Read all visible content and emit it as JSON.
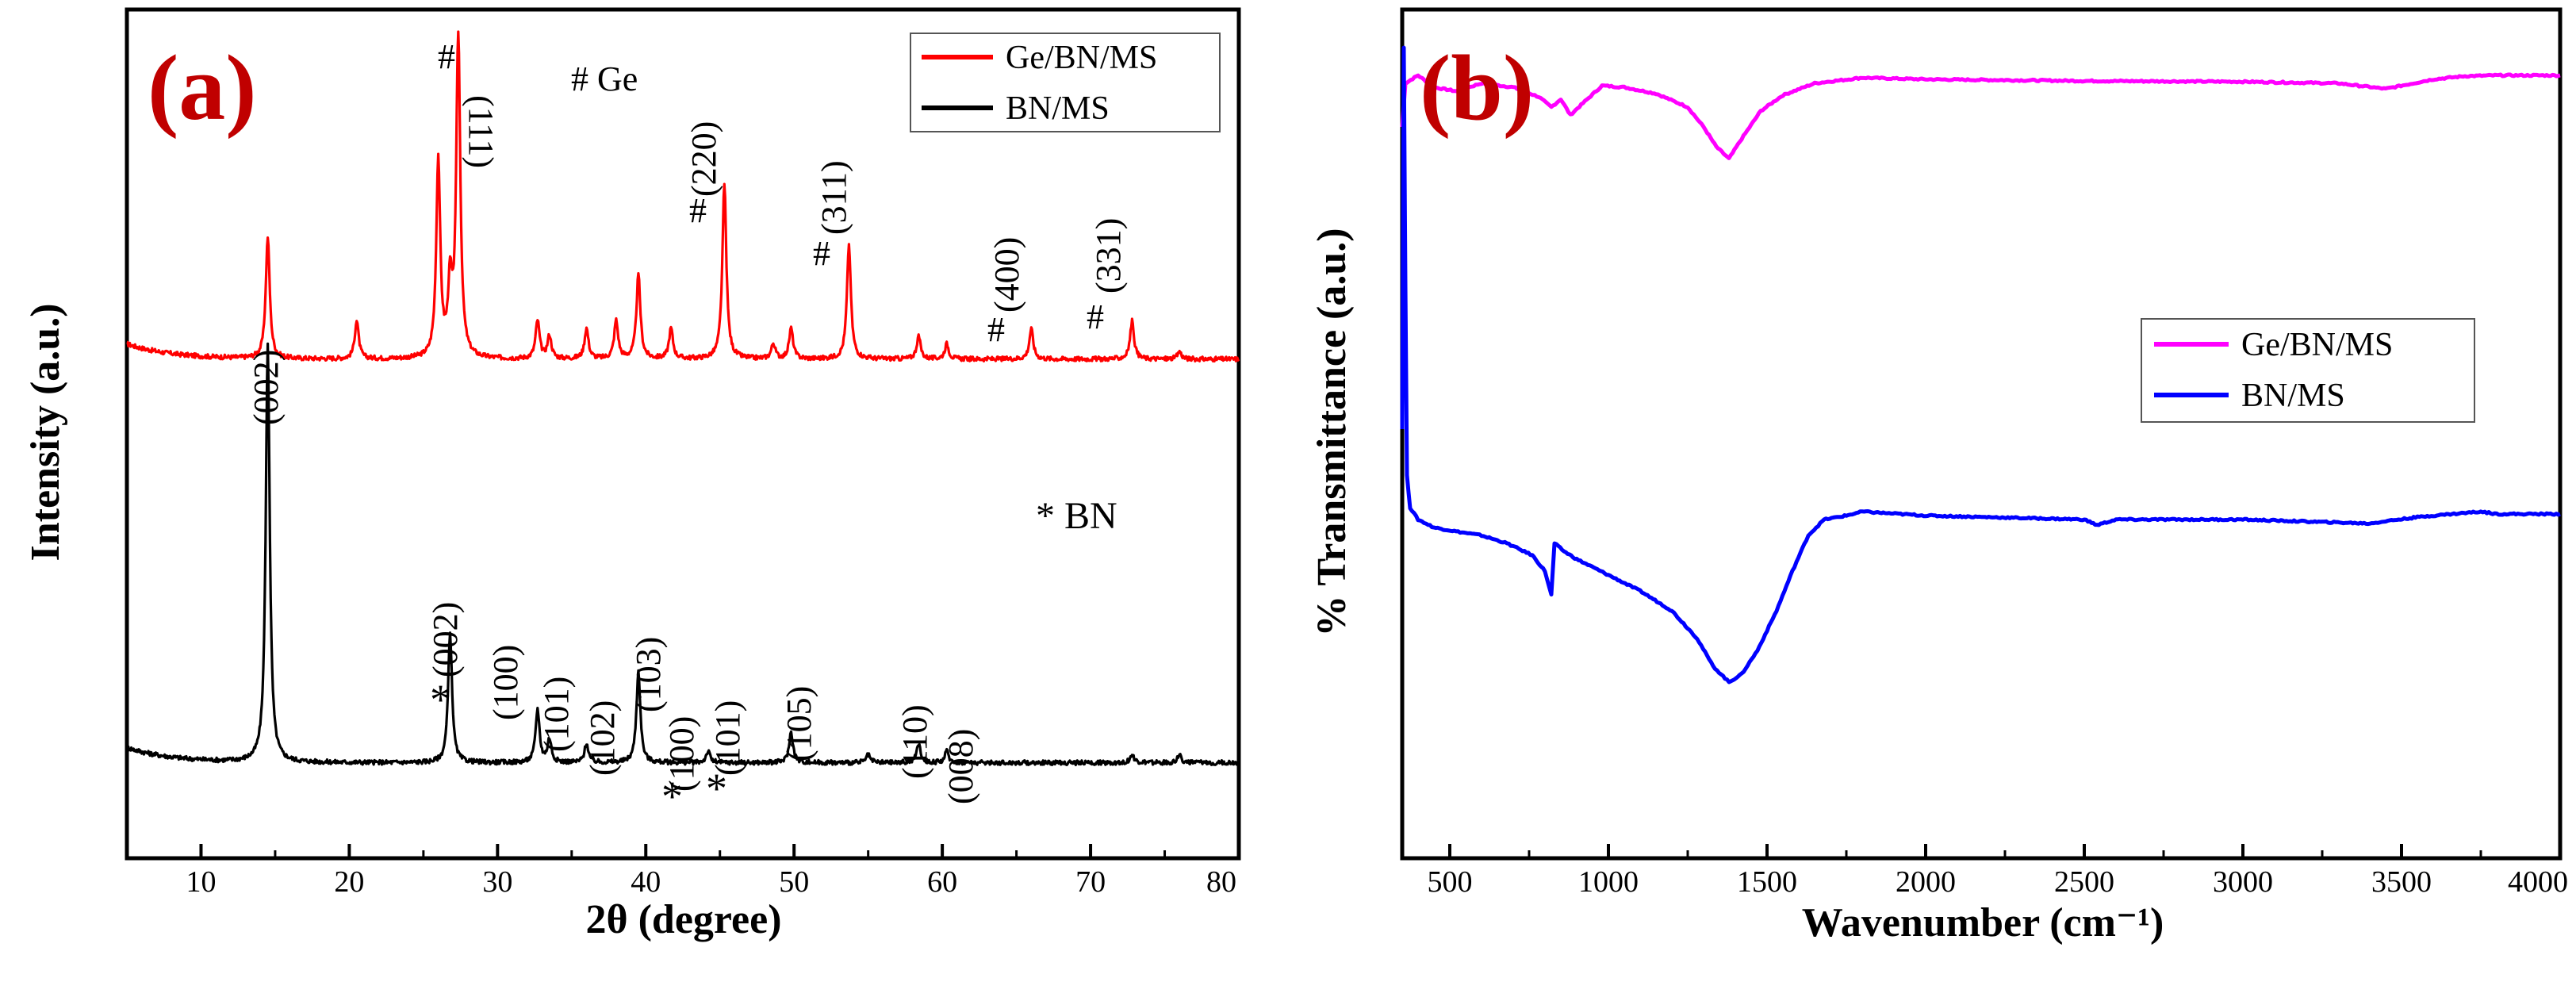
{
  "chart_data": [
    {
      "panel": "(a)",
      "type": "line",
      "xlabel": "2θ (degree)",
      "ylabel": "Intensity (a.u.)",
      "xlim": [
        5,
        80
      ],
      "xticks": [
        10,
        20,
        30,
        40,
        50,
        60,
        70,
        80
      ],
      "ylim": [
        0,
        1.0
      ],
      "legend_position": "top-right",
      "series": [
        {
          "name": "Ge/BN/MS",
          "color": "#ff0000",
          "baseline": 0.57,
          "peaks": [
            {
              "x": 14.5,
              "h": 0.16
            },
            {
              "x": 20.5,
              "h": 0.05
            },
            {
              "x": 26.0,
              "h": 0.26
            },
            {
              "x": 26.8,
              "h": 0.09
            },
            {
              "x": 27.35,
              "h": 0.43
            },
            {
              "x": 32.7,
              "h": 0.05
            },
            {
              "x": 33.5,
              "h": 0.03
            },
            {
              "x": 36.0,
              "h": 0.04
            },
            {
              "x": 38.0,
              "h": 0.05
            },
            {
              "x": 39.5,
              "h": 0.11
            },
            {
              "x": 41.7,
              "h": 0.04
            },
            {
              "x": 45.3,
              "h": 0.23
            },
            {
              "x": 48.6,
              "h": 0.02
            },
            {
              "x": 49.8,
              "h": 0.04
            },
            {
              "x": 53.7,
              "h": 0.15
            },
            {
              "x": 58.4,
              "h": 0.03
            },
            {
              "x": 60.3,
              "h": 0.02
            },
            {
              "x": 66.0,
              "h": 0.04
            },
            {
              "x": 72.8,
              "h": 0.05
            },
            {
              "x": 76.0,
              "h": 0.01
            }
          ]
        },
        {
          "name": "BN/MS",
          "color": "#000000",
          "baseline": 0.04,
          "peaks": [
            {
              "x": 14.5,
              "h": 0.55
            },
            {
              "x": 26.8,
              "h": 0.17
            },
            {
              "x": 32.7,
              "h": 0.07
            },
            {
              "x": 33.5,
              "h": 0.03
            },
            {
              "x": 36.0,
              "h": 0.025
            },
            {
              "x": 39.5,
              "h": 0.12
            },
            {
              "x": 44.2,
              "h": 0.015
            },
            {
              "x": 49.8,
              "h": 0.04
            },
            {
              "x": 55.0,
              "h": 0.01
            },
            {
              "x": 58.4,
              "h": 0.025
            },
            {
              "x": 60.3,
              "h": 0.015
            },
            {
              "x": 72.8,
              "h": 0.01
            },
            {
              "x": 76.0,
              "h": 0.01
            }
          ]
        }
      ],
      "annotations": {
        "species_ge": "# Ge",
        "species_bn": "* BN",
        "hash": "#",
        "star": "*",
        "ge_111": "(111)",
        "ge_220": "(220)",
        "ge_311": "(311)",
        "ge_400": "(400)",
        "ge_331": "(331)",
        "bn_002_a": "(002)",
        "bn_002_b": "(002)",
        "bn_100": "(100)",
        "bn_101": "(101)",
        "bn_102": "(102)",
        "bn_103": "(103)",
        "bn_100_star": "(100)",
        "bn_101_star": "(101)",
        "bn_105": "(105)",
        "bn_110": "(110)",
        "bn_008": "(008)"
      }
    },
    {
      "panel": "(b)",
      "type": "line",
      "xlabel": "Wavenumber (cm⁻¹)",
      "ylabel": "% Transmittance (a.u.)",
      "xlim": [
        350,
        4000
      ],
      "xticks": [
        500,
        1000,
        1500,
        2000,
        2500,
        3000,
        3500,
        4000
      ],
      "ylim": [
        0,
        1.0
      ],
      "legend_position": "center-right",
      "series": [
        {
          "name": "Ge/BN/MS",
          "color": "#ff00ff",
          "x": [
            350,
            360,
            400,
            450,
            520,
            600,
            700,
            780,
            820,
            850,
            880,
            920,
            980,
            1050,
            1150,
            1250,
            1300,
            1340,
            1380,
            1420,
            1480,
            1550,
            1650,
            1800,
            2000,
            2500,
            3000,
            3300,
            3450,
            3600,
            3700,
            3800,
            4000
          ],
          "y": [
            0.88,
            0.935,
            0.945,
            0.93,
            0.925,
            0.935,
            0.93,
            0.918,
            0.905,
            0.915,
            0.895,
            0.91,
            0.932,
            0.93,
            0.922,
            0.905,
            0.88,
            0.855,
            0.84,
            0.865,
            0.9,
            0.92,
            0.935,
            0.942,
            0.94,
            0.938,
            0.937,
            0.935,
            0.928,
            0.94,
            0.944,
            0.945,
            0.945
          ]
        },
        {
          "name": "BN/MS",
          "color": "#0000ff",
          "x": [
            350,
            355,
            360,
            365,
            375,
            400,
            450,
            520,
            600,
            680,
            760,
            800,
            820,
            830,
            860,
            900,
            1000,
            1100,
            1200,
            1280,
            1330,
            1380,
            1420,
            1470,
            1530,
            1580,
            1630,
            1680,
            1750,
            1800,
            2000,
            2500,
            2540,
            2600,
            3000,
            3400,
            3450,
            3550,
            3600,
            3750,
            3800,
            4000
          ],
          "y": [
            0.5,
            0.98,
            0.68,
            0.44,
            0.4,
            0.385,
            0.375,
            0.37,
            0.365,
            0.355,
            0.34,
            0.32,
            0.29,
            0.355,
            0.345,
            0.335,
            0.315,
            0.295,
            0.27,
            0.235,
            0.2,
            0.18,
            0.19,
            0.22,
            0.27,
            0.32,
            0.365,
            0.385,
            0.39,
            0.395,
            0.39,
            0.385,
            0.378,
            0.385,
            0.385,
            0.38,
            0.383,
            0.388,
            0.39,
            0.395,
            0.392,
            0.392
          ]
        }
      ]
    }
  ],
  "panel_labels": {
    "a": "(a)",
    "b": "(b)"
  }
}
